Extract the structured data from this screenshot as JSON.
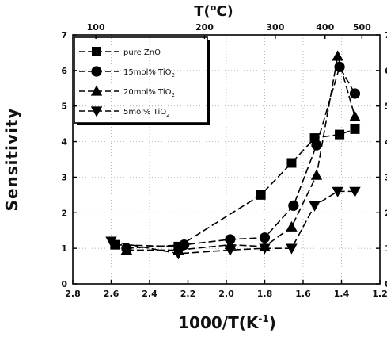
{
  "chart_data": {
    "type": "line",
    "title": "",
    "xlabel": "1000/T(K",
    "xlabel_sup": "-1",
    "xlabel_end": ")",
    "ylabel": "Sensitivity",
    "top_xlabel": "T(",
    "top_xlabel_sup": "o",
    "top_xlabel_end": "C)",
    "xlim": [
      2.8,
      1.2
    ],
    "ylim": [
      0,
      7
    ],
    "x_ticks": [
      "2.8",
      "2.6",
      "2.4",
      "2.2",
      "2.0",
      "1.8",
      "1.6",
      "1.4",
      "1.2"
    ],
    "y_ticks": [
      "0",
      "1",
      "2",
      "3",
      "4",
      "5",
      "6",
      "7"
    ],
    "top_ticks": [
      {
        "label": "100",
        "celsius": 100
      },
      {
        "label": "200",
        "celsius": 200
      },
      {
        "label": "300",
        "celsius": 300
      },
      {
        "label": "400",
        "celsius": 400
      },
      {
        "label": "500",
        "celsius": 500
      }
    ],
    "grid": true,
    "legend_position": "top-left",
    "series": [
      {
        "name": "pure ZnO",
        "name_sub": "",
        "marker": "square",
        "x": [
          2.58,
          2.25,
          1.82,
          1.66,
          1.54,
          1.41,
          1.33
        ],
        "y": [
          1.1,
          1.05,
          2.5,
          3.4,
          4.1,
          4.2,
          4.35
        ]
      },
      {
        "name": "15mol% TiO",
        "name_sub": "2",
        "marker": "circle",
        "x": [
          2.52,
          2.22,
          1.98,
          1.8,
          1.65,
          1.53,
          1.41,
          1.33
        ],
        "y": [
          1.0,
          1.1,
          1.25,
          1.3,
          2.2,
          3.9,
          6.1,
          5.35
        ]
      },
      {
        "name": "20mol% TiO",
        "name_sub": "2",
        "marker": "triangle-up",
        "x": [
          2.52,
          2.25,
          1.98,
          1.8,
          1.66,
          1.53,
          1.42,
          1.33
        ],
        "y": [
          0.95,
          0.95,
          1.1,
          1.05,
          1.6,
          3.05,
          6.4,
          4.7
        ]
      },
      {
        "name": "5mol% TiO",
        "name_sub": "2",
        "marker": "triangle-down",
        "x": [
          2.6,
          2.25,
          1.98,
          1.8,
          1.66,
          1.54,
          1.42,
          1.33
        ],
        "y": [
          1.2,
          0.85,
          0.95,
          1.0,
          1.0,
          2.2,
          2.6,
          2.6
        ]
      }
    ]
  }
}
